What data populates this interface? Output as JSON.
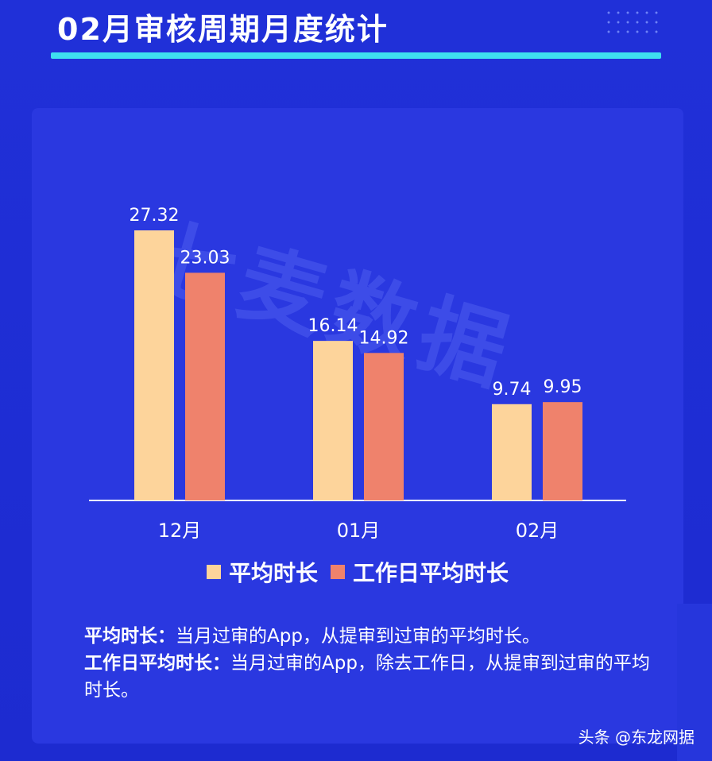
{
  "header": {
    "title": "02月审核周期月度统计"
  },
  "watermark": "七麦数据",
  "chart_data": {
    "type": "bar",
    "categories": [
      "12月",
      "01月",
      "02月"
    ],
    "series": [
      {
        "name": "平均时长",
        "values": [
          27.32,
          16.14,
          9.74
        ],
        "color": "#fdd49b"
      },
      {
        "name": "工作日平均时长",
        "values": [
          23.03,
          14.92,
          9.95
        ],
        "color": "#ef826c"
      }
    ],
    "ylim": [
      0,
      30
    ],
    "grid": false,
    "legend": "bottom"
  },
  "legend": {
    "items": [
      {
        "label": "平均时长",
        "color": "#fdd49b"
      },
      {
        "label": "工作日平均时长",
        "color": "#ef826c"
      }
    ]
  },
  "notes": {
    "line1_term": "平均时长：",
    "line1_text": "当月过审的App，从提审到过审的平均时长。",
    "line2_term": "工作日平均时长：",
    "line2_text": "当月过审的App，除去工作日，从提审到过审的平均时长。"
  },
  "footer": {
    "source": "头条 @东龙网据"
  }
}
